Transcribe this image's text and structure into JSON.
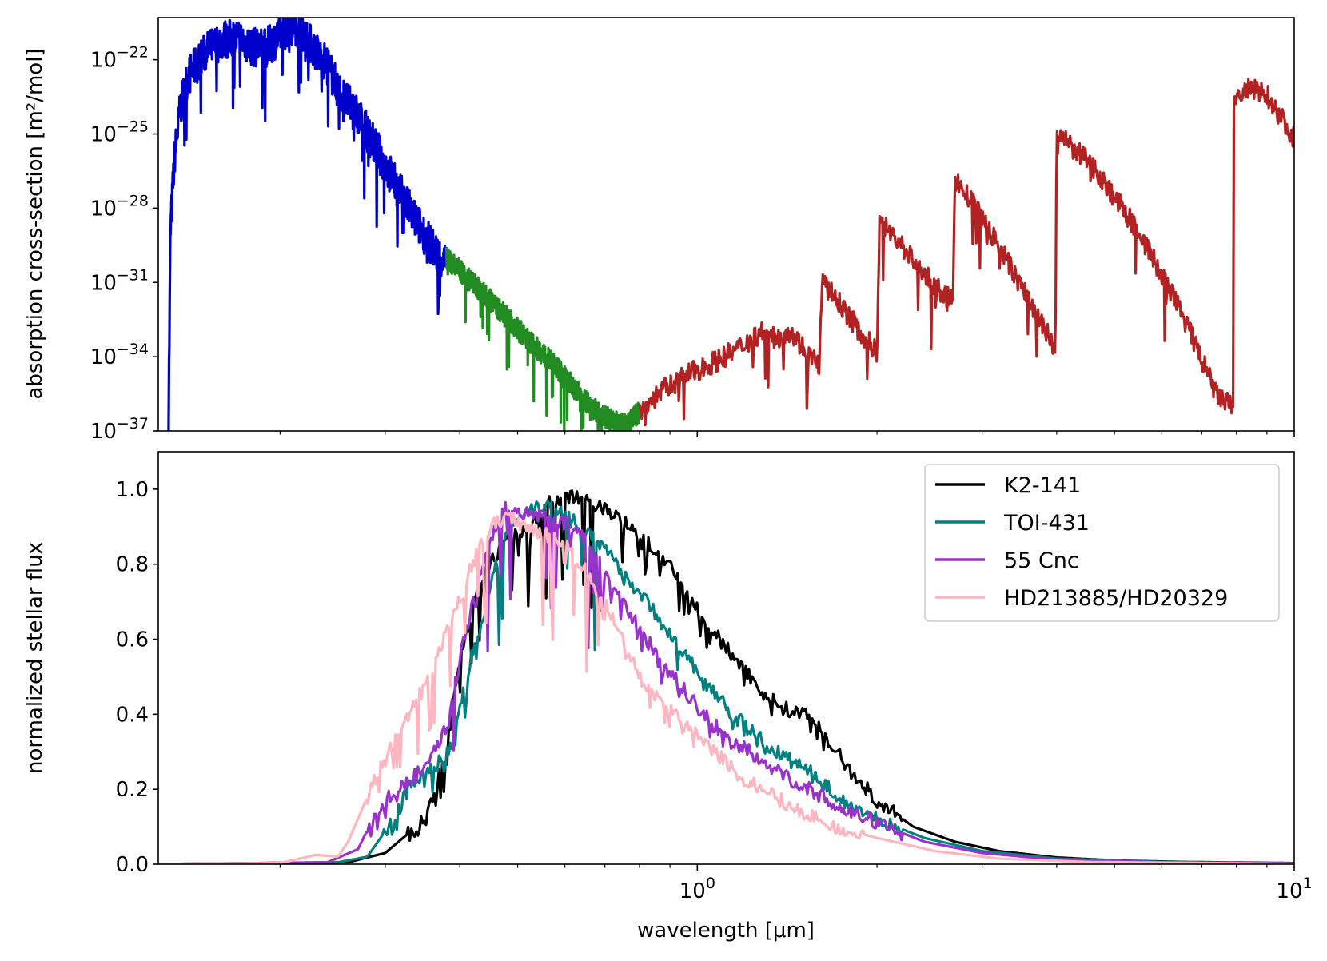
{
  "chart_data": [
    {
      "type": "line",
      "panel": "top",
      "xscale": "log",
      "yscale": "log",
      "xlim": [
        0.125,
        10
      ],
      "ylim_exponents": [
        -37,
        -20.3
      ],
      "ylabel": "absorption cross-section [m²/mol]",
      "ytick_exponents": [
        "−22",
        "−25",
        "−28",
        "−31",
        "−34",
        "−37"
      ],
      "ytick_base": "10",
      "colors": {
        "uv": "#0000cd",
        "visible": "#228b22",
        "ir": "#b22222"
      },
      "series": [
        {
          "name": "uv",
          "points": [
            [
              0.13,
              -37
            ],
            [
              0.131,
              -29
            ],
            [
              0.133,
              -26
            ],
            [
              0.136,
              -24
            ],
            [
              0.14,
              -22.7
            ],
            [
              0.15,
              -21.7
            ],
            [
              0.16,
              -21.2
            ],
            [
              0.17,
              -21.1
            ],
            [
              0.18,
              -21.5
            ],
            [
              0.19,
              -21.5
            ],
            [
              0.2,
              -21.0
            ],
            [
              0.21,
              -20.5
            ],
            [
              0.22,
              -21.0
            ],
            [
              0.23,
              -21.7
            ],
            [
              0.24,
              -22.2
            ],
            [
              0.25,
              -23.2
            ],
            [
              0.27,
              -24.3
            ],
            [
              0.29,
              -25.6
            ],
            [
              0.31,
              -26.9
            ],
            [
              0.33,
              -28.1
            ],
            [
              0.36,
              -29.6
            ],
            [
              0.38,
              -30.3
            ]
          ]
        },
        {
          "name": "visible",
          "points": [
            [
              0.38,
              -30.0
            ],
            [
              0.42,
              -31.0
            ],
            [
              0.47,
              -32.2
            ],
            [
              0.52,
              -33.3
            ],
            [
              0.58,
              -34.4
            ],
            [
              0.63,
              -35.4
            ],
            [
              0.67,
              -36.1
            ],
            [
              0.72,
              -36.6
            ],
            [
              0.76,
              -36.8
            ],
            [
              0.8,
              -36.2
            ]
          ]
        },
        {
          "name": "ir",
          "points": [
            [
              0.8,
              -36.2
            ],
            [
              0.87,
              -35.4
            ],
            [
              0.95,
              -34.8
            ],
            [
              1.05,
              -34.3
            ],
            [
              1.15,
              -33.8
            ],
            [
              1.28,
              -33.0
            ],
            [
              1.35,
              -33.3
            ],
            [
              1.42,
              -32.9
            ],
            [
              1.55,
              -34.0
            ],
            [
              1.6,
              -34.3
            ],
            [
              1.62,
              -31.0
            ],
            [
              1.75,
              -32.0
            ],
            [
              1.9,
              -33.2
            ],
            [
              2.0,
              -33.8
            ],
            [
              2.02,
              -28.5
            ],
            [
              2.2,
              -29.5
            ],
            [
              2.5,
              -31.2
            ],
            [
              2.68,
              -31.8
            ],
            [
              2.7,
              -26.8
            ],
            [
              3.0,
              -28.4
            ],
            [
              3.5,
              -31.2
            ],
            [
              3.98,
              -33.7
            ],
            [
              4.0,
              -25.0
            ],
            [
              4.6,
              -26.3
            ],
            [
              5.5,
              -29.0
            ],
            [
              6.5,
              -32.3
            ],
            [
              7.4,
              -35.5
            ],
            [
              7.9,
              -36.1
            ],
            [
              7.92,
              -23.6
            ],
            [
              8.4,
              -23.2
            ],
            [
              9.0,
              -23.4
            ],
            [
              9.5,
              -24.3
            ],
            [
              10.0,
              -25.2
            ]
          ]
        }
      ]
    },
    {
      "type": "line",
      "panel": "bottom",
      "xscale": "log",
      "xlim": [
        0.125,
        10
      ],
      "ylim": [
        0,
        1.1
      ],
      "xlabel": "wavelength [μm]",
      "ylabel": "normalized stellar flux",
      "yticks": [
        "0.0",
        "0.2",
        "0.4",
        "0.6",
        "0.8",
        "1.0"
      ],
      "xtick_base": "10",
      "xticks": [
        "0",
        "1"
      ],
      "legend_position": "upper-right",
      "series": [
        {
          "name": "K2-141",
          "color": "#000000",
          "points": [
            [
              0.12,
              0
            ],
            [
              0.26,
              0.005
            ],
            [
              0.3,
              0.03
            ],
            [
              0.35,
              0.12
            ],
            [
              0.38,
              0.3
            ],
            [
              0.4,
              0.55
            ],
            [
              0.43,
              0.75
            ],
            [
              0.47,
              0.85
            ],
            [
              0.52,
              0.9
            ],
            [
              0.57,
              0.97
            ],
            [
              0.62,
              0.98
            ],
            [
              0.7,
              0.95
            ],
            [
              0.8,
              0.88
            ],
            [
              0.9,
              0.79
            ],
            [
              1.0,
              0.68
            ],
            [
              1.1,
              0.59
            ],
            [
              1.2,
              0.52
            ],
            [
              1.3,
              0.45
            ],
            [
              1.42,
              0.41
            ],
            [
              1.55,
              0.4
            ],
            [
              1.65,
              0.33
            ],
            [
              1.85,
              0.23
            ],
            [
              2.0,
              0.17
            ],
            [
              2.3,
              0.1
            ],
            [
              2.7,
              0.06
            ],
            [
              3.2,
              0.035
            ],
            [
              4.0,
              0.018
            ],
            [
              5.0,
              0.01
            ],
            [
              6.5,
              0.006
            ],
            [
              10.0,
              0.003
            ]
          ]
        },
        {
          "name": "TOI-431",
          "color": "#008080",
          "points": [
            [
              0.12,
              0
            ],
            [
              0.25,
              0.005
            ],
            [
              0.28,
              0.02
            ],
            [
              0.31,
              0.12
            ],
            [
              0.33,
              0.22
            ],
            [
              0.36,
              0.25
            ],
            [
              0.39,
              0.32
            ],
            [
              0.41,
              0.5
            ],
            [
              0.44,
              0.68
            ],
            [
              0.47,
              0.85
            ],
            [
              0.5,
              0.93
            ],
            [
              0.54,
              0.96
            ],
            [
              0.58,
              0.95
            ],
            [
              0.62,
              0.92
            ],
            [
              0.68,
              0.86
            ],
            [
              0.75,
              0.78
            ],
            [
              0.85,
              0.67
            ],
            [
              0.95,
              0.56
            ],
            [
              1.05,
              0.47
            ],
            [
              1.15,
              0.4
            ],
            [
              1.3,
              0.32
            ],
            [
              1.45,
              0.27
            ],
            [
              1.55,
              0.25
            ],
            [
              1.75,
              0.17
            ],
            [
              2.0,
              0.12
            ],
            [
              2.4,
              0.07
            ],
            [
              3.0,
              0.035
            ],
            [
              4.0,
              0.015
            ],
            [
              6.0,
              0.006
            ],
            [
              10.0,
              0.002
            ]
          ]
        },
        {
          "name": "55 Cnc",
          "color": "#9932cc",
          "points": [
            [
              0.12,
              0
            ],
            [
              0.24,
              0.005
            ],
            [
              0.27,
              0.04
            ],
            [
              0.29,
              0.14
            ],
            [
              0.31,
              0.19
            ],
            [
              0.34,
              0.24
            ],
            [
              0.38,
              0.36
            ],
            [
              0.41,
              0.63
            ],
            [
              0.44,
              0.8
            ],
            [
              0.47,
              0.95
            ],
            [
              0.5,
              0.94
            ],
            [
              0.54,
              0.93
            ],
            [
              0.58,
              0.92
            ],
            [
              0.62,
              0.9
            ],
            [
              0.66,
              0.85
            ],
            [
              0.72,
              0.75
            ],
            [
              0.8,
              0.63
            ],
            [
              0.9,
              0.51
            ],
            [
              1.0,
              0.42
            ],
            [
              1.1,
              0.35
            ],
            [
              1.2,
              0.31
            ],
            [
              1.35,
              0.25
            ],
            [
              1.5,
              0.21
            ],
            [
              1.7,
              0.16
            ],
            [
              2.0,
              0.11
            ],
            [
              2.4,
              0.06
            ],
            [
              3.0,
              0.03
            ],
            [
              4.0,
              0.012
            ],
            [
              6.0,
              0.005
            ],
            [
              10.0,
              0.002
            ]
          ]
        },
        {
          "name": "HD213885/HD20329",
          "color": "#ffb6c1",
          "points": [
            [
              0.12,
              0
            ],
            [
              0.2,
              0.003
            ],
            [
              0.23,
              0.025
            ],
            [
              0.25,
              0.02
            ],
            [
              0.26,
              0.06
            ],
            [
              0.28,
              0.18
            ],
            [
              0.3,
              0.28
            ],
            [
              0.33,
              0.4
            ],
            [
              0.36,
              0.52
            ],
            [
              0.39,
              0.66
            ],
            [
              0.42,
              0.8
            ],
            [
              0.45,
              0.9
            ],
            [
              0.48,
              0.93
            ],
            [
              0.52,
              0.9
            ],
            [
              0.56,
              0.88
            ],
            [
              0.6,
              0.85
            ],
            [
              0.65,
              0.78
            ],
            [
              0.72,
              0.66
            ],
            [
              0.8,
              0.5
            ],
            [
              0.9,
              0.41
            ],
            [
              1.0,
              0.34
            ],
            [
              1.1,
              0.28
            ],
            [
              1.25,
              0.21
            ],
            [
              1.45,
              0.15
            ],
            [
              1.7,
              0.1
            ],
            [
              2.0,
              0.07
            ],
            [
              2.5,
              0.035
            ],
            [
              3.2,
              0.015
            ],
            [
              4.5,
              0.006
            ],
            [
              10.0,
              0.001
            ]
          ]
        }
      ]
    }
  ]
}
